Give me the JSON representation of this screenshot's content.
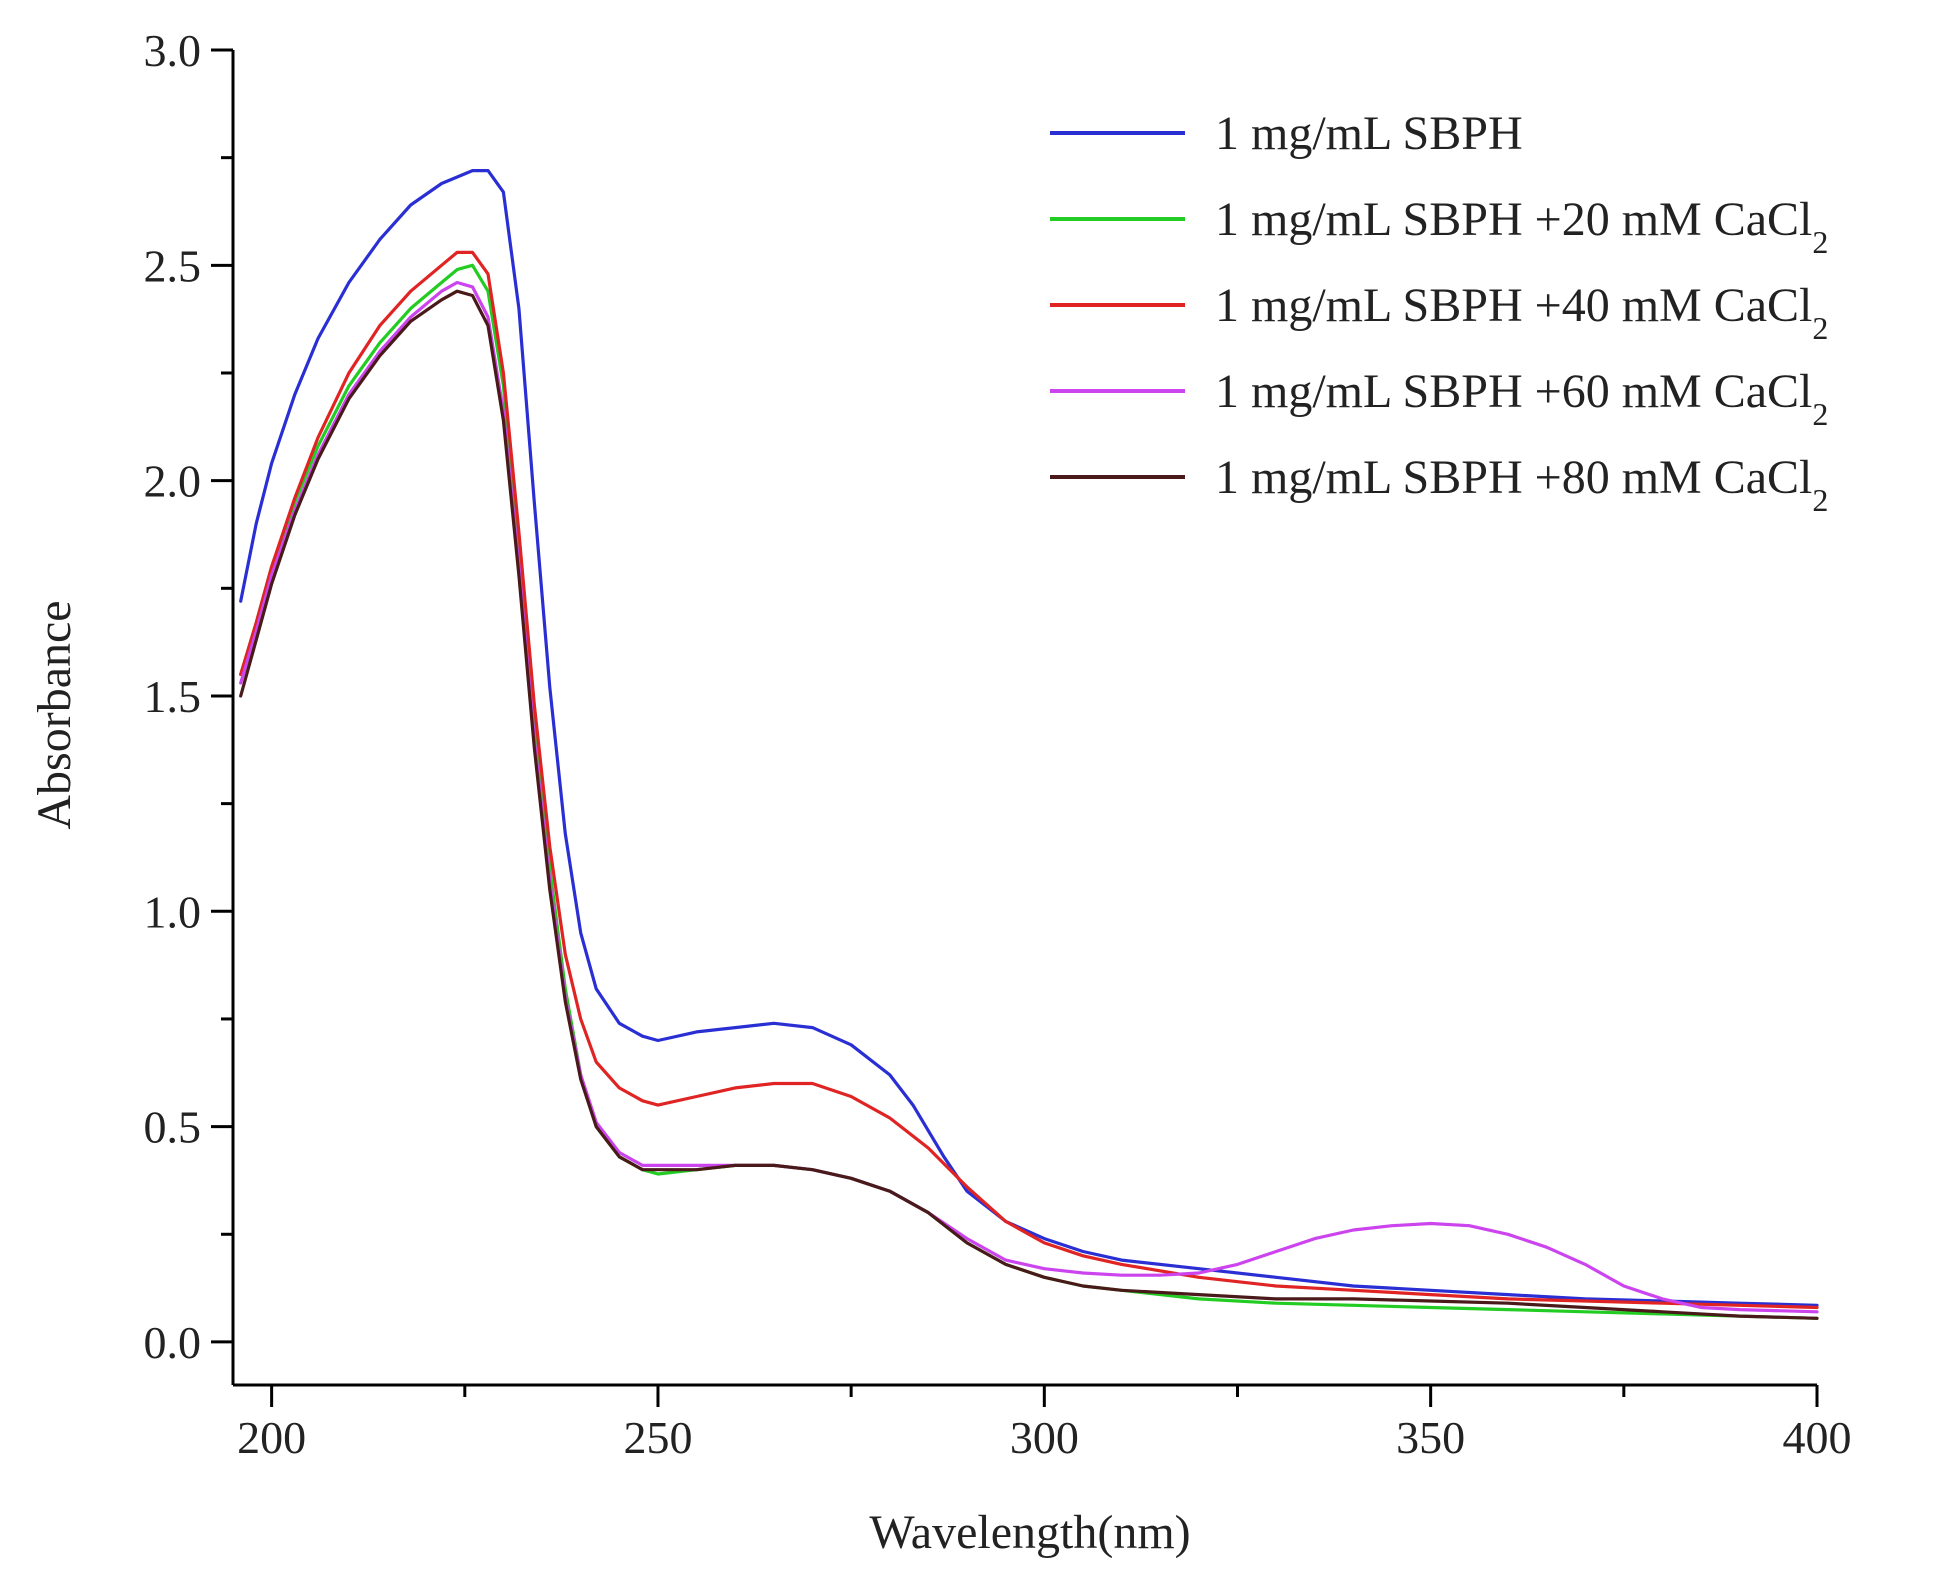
{
  "chart_data": {
    "type": "line",
    "title": "",
    "xlabel": "Wavelength(nm)",
    "ylabel": "Absorbance",
    "xlim": [
      195,
      400
    ],
    "ylim": [
      -0.1,
      3.0
    ],
    "xticks": [
      200,
      250,
      300,
      350,
      400
    ],
    "xtick_labels": [
      "200",
      "250",
      "300",
      "350",
      "400"
    ],
    "yticks": [
      0.0,
      0.5,
      1.0,
      1.5,
      2.0,
      2.5,
      3.0
    ],
    "ytick_labels": [
      "0.0",
      "0.5",
      "1.0",
      "1.5",
      "2.0",
      "2.5",
      "3.0"
    ],
    "grid": false,
    "legend_position": "top-right",
    "series": [
      {
        "name": "1 mg/mL SBPH",
        "legend": {
          "text": "1 mg/mL SBPH",
          "sub": "",
          "tail": ""
        },
        "color": "#2a2fd4",
        "points": [
          [
            196,
            1.72
          ],
          [
            198,
            1.9
          ],
          [
            200,
            2.04
          ],
          [
            203,
            2.2
          ],
          [
            206,
            2.33
          ],
          [
            210,
            2.46
          ],
          [
            214,
            2.56
          ],
          [
            218,
            2.64
          ],
          [
            222,
            2.69
          ],
          [
            226,
            2.72
          ],
          [
            228,
            2.72
          ],
          [
            230,
            2.67
          ],
          [
            232,
            2.4
          ],
          [
            234,
            1.95
          ],
          [
            236,
            1.52
          ],
          [
            238,
            1.18
          ],
          [
            240,
            0.95
          ],
          [
            242,
            0.82
          ],
          [
            245,
            0.74
          ],
          [
            248,
            0.71
          ],
          [
            250,
            0.7
          ],
          [
            255,
            0.72
          ],
          [
            260,
            0.73
          ],
          [
            265,
            0.74
          ],
          [
            270,
            0.73
          ],
          [
            275,
            0.69
          ],
          [
            280,
            0.62
          ],
          [
            283,
            0.55
          ],
          [
            287,
            0.43
          ],
          [
            290,
            0.35
          ],
          [
            295,
            0.28
          ],
          [
            300,
            0.24
          ],
          [
            305,
            0.21
          ],
          [
            310,
            0.19
          ],
          [
            320,
            0.17
          ],
          [
            330,
            0.15
          ],
          [
            340,
            0.13
          ],
          [
            350,
            0.12
          ],
          [
            360,
            0.11
          ],
          [
            370,
            0.1
          ],
          [
            380,
            0.095
          ],
          [
            390,
            0.09
          ],
          [
            400,
            0.085
          ]
        ]
      },
      {
        "name": "1 mg/mL SBPH +20 mM CaCl2",
        "legend": {
          "text": "1 mg/mL SBPH +20 mM CaCl",
          "sub": "2",
          "tail": ""
        },
        "color": "#22cc22",
        "points": [
          [
            196,
            1.55
          ],
          [
            198,
            1.67
          ],
          [
            200,
            1.8
          ],
          [
            203,
            1.95
          ],
          [
            206,
            2.08
          ],
          [
            210,
            2.22
          ],
          [
            214,
            2.32
          ],
          [
            218,
            2.4
          ],
          [
            222,
            2.46
          ],
          [
            224,
            2.49
          ],
          [
            226,
            2.5
          ],
          [
            228,
            2.44
          ],
          [
            230,
            2.22
          ],
          [
            232,
            1.85
          ],
          [
            234,
            1.45
          ],
          [
            236,
            1.1
          ],
          [
            238,
            0.82
          ],
          [
            240,
            0.62
          ],
          [
            242,
            0.5
          ],
          [
            245,
            0.43
          ],
          [
            248,
            0.4
          ],
          [
            250,
            0.39
          ],
          [
            255,
            0.4
          ],
          [
            260,
            0.41
          ],
          [
            265,
            0.41
          ],
          [
            270,
            0.4
          ],
          [
            275,
            0.38
          ],
          [
            280,
            0.35
          ],
          [
            285,
            0.3
          ],
          [
            290,
            0.23
          ],
          [
            295,
            0.18
          ],
          [
            300,
            0.15
          ],
          [
            305,
            0.13
          ],
          [
            310,
            0.12
          ],
          [
            320,
            0.1
          ],
          [
            330,
            0.09
          ],
          [
            340,
            0.085
          ],
          [
            350,
            0.08
          ],
          [
            360,
            0.075
          ],
          [
            370,
            0.07
          ],
          [
            380,
            0.065
          ],
          [
            390,
            0.06
          ],
          [
            400,
            0.055
          ]
        ]
      },
      {
        "name": "1 mg/mL SBPH +40 mM CaCl2",
        "legend": {
          "text": "1 mg/mL SBPH +40 mM CaCl",
          "sub": "2",
          "tail": ""
        },
        "color": "#e02424",
        "points": [
          [
            196,
            1.55
          ],
          [
            198,
            1.67
          ],
          [
            200,
            1.8
          ],
          [
            203,
            1.96
          ],
          [
            206,
            2.1
          ],
          [
            210,
            2.25
          ],
          [
            214,
            2.36
          ],
          [
            218,
            2.44
          ],
          [
            222,
            2.5
          ],
          [
            224,
            2.53
          ],
          [
            226,
            2.53
          ],
          [
            228,
            2.48
          ],
          [
            230,
            2.25
          ],
          [
            232,
            1.88
          ],
          [
            234,
            1.48
          ],
          [
            236,
            1.15
          ],
          [
            238,
            0.9
          ],
          [
            240,
            0.75
          ],
          [
            242,
            0.65
          ],
          [
            245,
            0.59
          ],
          [
            248,
            0.56
          ],
          [
            250,
            0.55
          ],
          [
            255,
            0.57
          ],
          [
            260,
            0.59
          ],
          [
            265,
            0.6
          ],
          [
            270,
            0.6
          ],
          [
            275,
            0.57
          ],
          [
            280,
            0.52
          ],
          [
            285,
            0.45
          ],
          [
            290,
            0.36
          ],
          [
            295,
            0.28
          ],
          [
            300,
            0.23
          ],
          [
            305,
            0.2
          ],
          [
            310,
            0.18
          ],
          [
            320,
            0.15
          ],
          [
            330,
            0.13
          ],
          [
            340,
            0.12
          ],
          [
            350,
            0.11
          ],
          [
            360,
            0.1
          ],
          [
            370,
            0.095
          ],
          [
            380,
            0.09
          ],
          [
            390,
            0.085
          ],
          [
            400,
            0.08
          ]
        ]
      },
      {
        "name": "1 mg/mL SBPH +60 mM CaCl2",
        "legend": {
          "text": "1 mg/mL SBPH +60 mM CaCl",
          "sub": "2",
          "tail": ""
        },
        "color": "#cc44ee",
        "points": [
          [
            196,
            1.53
          ],
          [
            198,
            1.65
          ],
          [
            200,
            1.78
          ],
          [
            203,
            1.93
          ],
          [
            206,
            2.06
          ],
          [
            210,
            2.2
          ],
          [
            214,
            2.3
          ],
          [
            218,
            2.38
          ],
          [
            222,
            2.44
          ],
          [
            224,
            2.46
          ],
          [
            226,
            2.45
          ],
          [
            228,
            2.38
          ],
          [
            230,
            2.16
          ],
          [
            232,
            1.8
          ],
          [
            234,
            1.4
          ],
          [
            236,
            1.07
          ],
          [
            238,
            0.8
          ],
          [
            240,
            0.62
          ],
          [
            242,
            0.51
          ],
          [
            245,
            0.44
          ],
          [
            248,
            0.41
          ],
          [
            250,
            0.41
          ],
          [
            255,
            0.41
          ],
          [
            260,
            0.41
          ],
          [
            265,
            0.41
          ],
          [
            270,
            0.4
          ],
          [
            275,
            0.38
          ],
          [
            280,
            0.35
          ],
          [
            285,
            0.3
          ],
          [
            290,
            0.24
          ],
          [
            295,
            0.19
          ],
          [
            300,
            0.17
          ],
          [
            305,
            0.16
          ],
          [
            310,
            0.155
          ],
          [
            315,
            0.155
          ],
          [
            320,
            0.16
          ],
          [
            325,
            0.18
          ],
          [
            330,
            0.21
          ],
          [
            335,
            0.24
          ],
          [
            340,
            0.26
          ],
          [
            345,
            0.27
          ],
          [
            350,
            0.275
          ],
          [
            355,
            0.27
          ],
          [
            360,
            0.25
          ],
          [
            365,
            0.22
          ],
          [
            370,
            0.18
          ],
          [
            375,
            0.13
          ],
          [
            380,
            0.1
          ],
          [
            385,
            0.08
          ],
          [
            390,
            0.075
          ],
          [
            400,
            0.07
          ]
        ]
      },
      {
        "name": "1 mg/mL SBPH +80 mM CaCl2",
        "legend": {
          "text": "1 mg/mL SBPH +80 mM CaCl",
          "sub": "2",
          "tail": ""
        },
        "color": "#4a1a1a",
        "points": [
          [
            196,
            1.5
          ],
          [
            198,
            1.63
          ],
          [
            200,
            1.76
          ],
          [
            203,
            1.92
          ],
          [
            206,
            2.05
          ],
          [
            210,
            2.19
          ],
          [
            214,
            2.29
          ],
          [
            218,
            2.37
          ],
          [
            222,
            2.42
          ],
          [
            224,
            2.44
          ],
          [
            226,
            2.43
          ],
          [
            228,
            2.36
          ],
          [
            230,
            2.14
          ],
          [
            232,
            1.78
          ],
          [
            234,
            1.38
          ],
          [
            236,
            1.05
          ],
          [
            238,
            0.79
          ],
          [
            240,
            0.61
          ],
          [
            242,
            0.5
          ],
          [
            245,
            0.43
          ],
          [
            248,
            0.4
          ],
          [
            250,
            0.4
          ],
          [
            255,
            0.4
          ],
          [
            260,
            0.41
          ],
          [
            265,
            0.41
          ],
          [
            270,
            0.4
          ],
          [
            275,
            0.38
          ],
          [
            280,
            0.35
          ],
          [
            285,
            0.3
          ],
          [
            290,
            0.23
          ],
          [
            295,
            0.18
          ],
          [
            300,
            0.15
          ],
          [
            305,
            0.13
          ],
          [
            310,
            0.12
          ],
          [
            320,
            0.11
          ],
          [
            330,
            0.1
          ],
          [
            340,
            0.1
          ],
          [
            350,
            0.095
          ],
          [
            360,
            0.09
          ],
          [
            370,
            0.08
          ],
          [
            380,
            0.07
          ],
          [
            390,
            0.06
          ],
          [
            400,
            0.055
          ]
        ]
      }
    ]
  }
}
